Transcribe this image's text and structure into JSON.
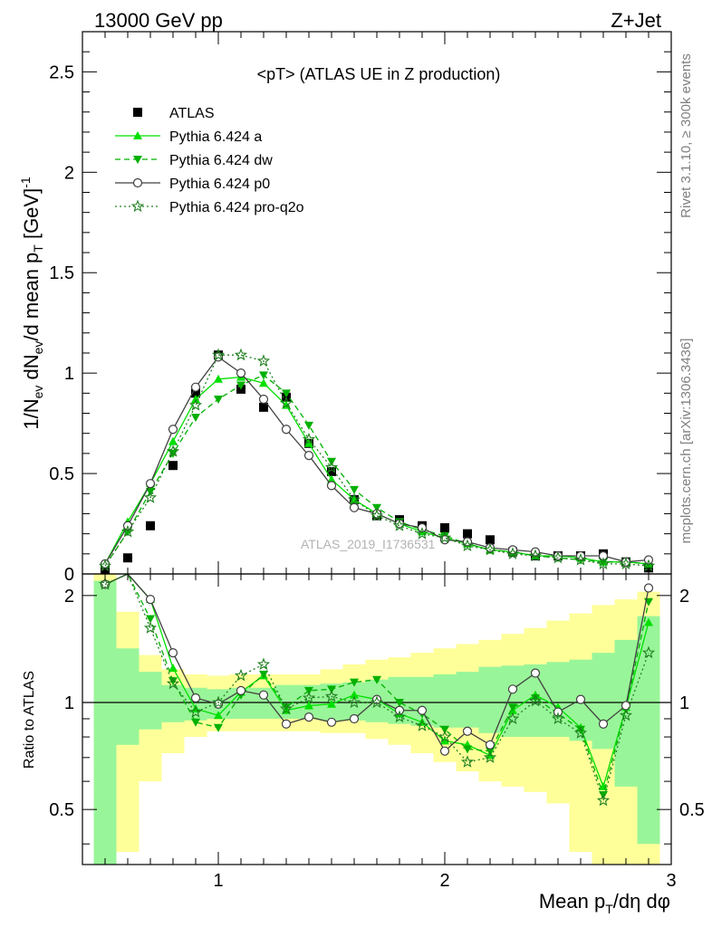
{
  "header": {
    "left": "13000 GeV pp",
    "right": "Z+Jet"
  },
  "side": {
    "rivet": "Rivet 3.1.10, ≥ 300k events",
    "mcplots": "mcplots.cern.ch [arXiv:1306.3436]"
  },
  "colors": {
    "atlas": "#000000",
    "pythia_a": "#00e000",
    "pythia_dw": "#00b000",
    "pythia_p0": "#404040",
    "pythia_proq2o": "#208020",
    "band_inner": "#99f599",
    "band_outer": "#ffff99"
  },
  "chart_data": [
    {
      "type": "line",
      "title": "<pT> (ATLAS UE in Z production)",
      "ylabel": "1/N_ev dN_ev/d mean p_T [GeV]^-1",
      "watermark": "ATLAS_2019_I1736531",
      "xlim": [
        0.4,
        3.0
      ],
      "ylim": [
        0,
        2.7
      ],
      "yticks": [
        "0",
        "0.5",
        "1",
        "1.5",
        "2",
        "2.5"
      ],
      "legend_position": "top-left",
      "x": [
        0.5,
        0.6,
        0.7,
        0.8,
        0.9,
        1.0,
        1.1,
        1.2,
        1.3,
        1.4,
        1.5,
        1.6,
        1.7,
        1.8,
        1.9,
        2.0,
        2.1,
        2.2,
        2.3,
        2.4,
        2.5,
        2.6,
        2.7,
        2.8,
        2.9
      ],
      "series": [
        {
          "name": "ATLAS",
          "values": [
            0.02,
            0.08,
            0.24,
            0.54,
            0.9,
            1.09,
            0.92,
            0.83,
            0.88,
            0.65,
            0.51,
            0.37,
            0.29,
            0.27,
            0.24,
            0.23,
            0.2,
            0.17,
            0.11,
            0.09,
            0.09,
            0.09,
            0.1,
            0.06,
            0.03
          ]
        },
        {
          "name": "Pythia 6.424 a",
          "values": [
            0.05,
            0.26,
            0.45,
            0.66,
            0.87,
            0.97,
            0.98,
            0.95,
            0.84,
            0.65,
            0.47,
            0.37,
            0.3,
            0.25,
            0.21,
            0.18,
            0.15,
            0.12,
            0.11,
            0.09,
            0.09,
            0.08,
            0.06,
            0.06,
            0.05
          ]
        },
        {
          "name": "Pythia 6.424 dw",
          "values": [
            0.04,
            0.21,
            0.41,
            0.6,
            0.78,
            0.87,
            0.94,
            0.99,
            0.9,
            0.74,
            0.56,
            0.42,
            0.33,
            0.26,
            0.22,
            0.19,
            0.15,
            0.12,
            0.11,
            0.09,
            0.08,
            0.07,
            0.06,
            0.06,
            0.05
          ]
        },
        {
          "name": "Pythia 6.424 p0",
          "values": [
            0.05,
            0.24,
            0.45,
            0.72,
            0.93,
            1.08,
            1.0,
            0.87,
            0.72,
            0.59,
            0.44,
            0.33,
            0.3,
            0.25,
            0.23,
            0.17,
            0.16,
            0.13,
            0.12,
            0.11,
            0.09,
            0.09,
            0.09,
            0.06,
            0.07
          ]
        },
        {
          "name": "Pythia 6.424 pro-q2o",
          "values": [
            0.04,
            0.21,
            0.38,
            0.61,
            0.84,
            1.09,
            1.09,
            1.06,
            0.85,
            0.67,
            0.53,
            0.37,
            0.29,
            0.24,
            0.2,
            0.18,
            0.14,
            0.12,
            0.1,
            0.09,
            0.08,
            0.07,
            0.05,
            0.05,
            0.04
          ]
        }
      ]
    },
    {
      "type": "line",
      "ylabel": "Ratio to ATLAS",
      "xlabel": "Mean p_T/dη dφ",
      "xlim": [
        0.4,
        3.0
      ],
      "ylim": [
        0.35,
        2.3
      ],
      "xticks": [
        "1",
        "2",
        "3"
      ],
      "yticks": [
        "0.5",
        "1",
        "2"
      ],
      "reference_line": 1,
      "x": [
        0.5,
        0.6,
        0.7,
        0.8,
        0.9,
        1.0,
        1.1,
        1.2,
        1.3,
        1.4,
        1.5,
        1.6,
        1.7,
        1.8,
        1.9,
        2.0,
        2.1,
        2.2,
        2.3,
        2.4,
        2.5,
        2.6,
        2.7,
        2.8,
        2.9
      ],
      "band_inner": [
        [
          0.3,
          2.2
        ],
        [
          0.76,
          1.42
        ],
        [
          0.84,
          1.22
        ],
        [
          0.88,
          1.12
        ],
        [
          0.89,
          1.1
        ],
        [
          0.9,
          1.09
        ],
        [
          0.9,
          1.1
        ],
        [
          0.9,
          1.1
        ],
        [
          0.9,
          1.12
        ],
        [
          0.9,
          1.12
        ],
        [
          0.89,
          1.13
        ],
        [
          0.89,
          1.14
        ],
        [
          0.88,
          1.16
        ],
        [
          0.87,
          1.18
        ],
        [
          0.86,
          1.18
        ],
        [
          0.85,
          1.2
        ],
        [
          0.85,
          1.22
        ],
        [
          0.82,
          1.26
        ],
        [
          0.8,
          1.27
        ],
        [
          0.8,
          1.28
        ],
        [
          0.8,
          1.3
        ],
        [
          0.78,
          1.32
        ],
        [
          0.74,
          1.38
        ],
        [
          0.58,
          1.5
        ],
        [
          0.4,
          1.75
        ]
      ],
      "band_outer": [
        [
          0.3,
          2.3
        ],
        [
          0.38,
          1.8
        ],
        [
          0.6,
          1.36
        ],
        [
          0.72,
          1.24
        ],
        [
          0.8,
          1.2
        ],
        [
          0.83,
          1.19
        ],
        [
          0.83,
          1.2
        ],
        [
          0.83,
          1.2
        ],
        [
          0.83,
          1.2
        ],
        [
          0.83,
          1.2
        ],
        [
          0.82,
          1.24
        ],
        [
          0.82,
          1.28
        ],
        [
          0.79,
          1.32
        ],
        [
          0.76,
          1.34
        ],
        [
          0.72,
          1.38
        ],
        [
          0.68,
          1.42
        ],
        [
          0.64,
          1.46
        ],
        [
          0.6,
          1.5
        ],
        [
          0.58,
          1.56
        ],
        [
          0.56,
          1.62
        ],
        [
          0.52,
          1.7
        ],
        [
          0.38,
          1.78
        ],
        [
          0.3,
          1.88
        ],
        [
          0.3,
          1.95
        ],
        [
          0.3,
          2.05
        ]
      ],
      "series": [
        {
          "name": "Pythia 6.424 a",
          "values": [
            2.15,
            2.4,
            1.95,
            1.25,
            0.96,
            0.92,
            1.07,
            1.19,
            0.95,
            0.98,
            0.99,
            1.05,
            1.02,
            0.93,
            0.88,
            0.78,
            0.76,
            0.71,
            0.95,
            1.05,
            0.97,
            0.85,
            0.58,
            0.97,
            1.68
          ]
        },
        {
          "name": "Pythia 6.424 dw",
          "values": [
            2.15,
            2.4,
            1.72,
            1.15,
            0.88,
            0.85,
            1.05,
            1.2,
            0.97,
            1.08,
            1.09,
            1.14,
            1.16,
            1.0,
            0.93,
            0.84,
            0.74,
            0.73,
            0.97,
            1.03,
            0.93,
            0.84,
            0.55,
            0.96,
            1.92
          ]
        },
        {
          "name": "Pythia 6.424 p0",
          "values": [
            2.15,
            2.4,
            1.95,
            1.38,
            1.03,
            0.99,
            1.08,
            1.05,
            0.87,
            0.91,
            0.88,
            0.9,
            1.02,
            0.95,
            0.95,
            0.73,
            0.83,
            0.76,
            1.09,
            1.21,
            0.94,
            1.02,
            0.87,
            0.98,
            2.1
          ]
        },
        {
          "name": "Pythia 6.424 pro-q2o",
          "values": [
            2.15,
            2.4,
            1.62,
            1.13,
            0.94,
            1.0,
            1.19,
            1.28,
            0.96,
            1.03,
            1.04,
            1.0,
            1.0,
            0.91,
            0.86,
            0.8,
            0.68,
            0.7,
            0.9,
            1.01,
            0.9,
            0.82,
            0.53,
            0.92,
            1.38
          ]
        }
      ]
    }
  ]
}
